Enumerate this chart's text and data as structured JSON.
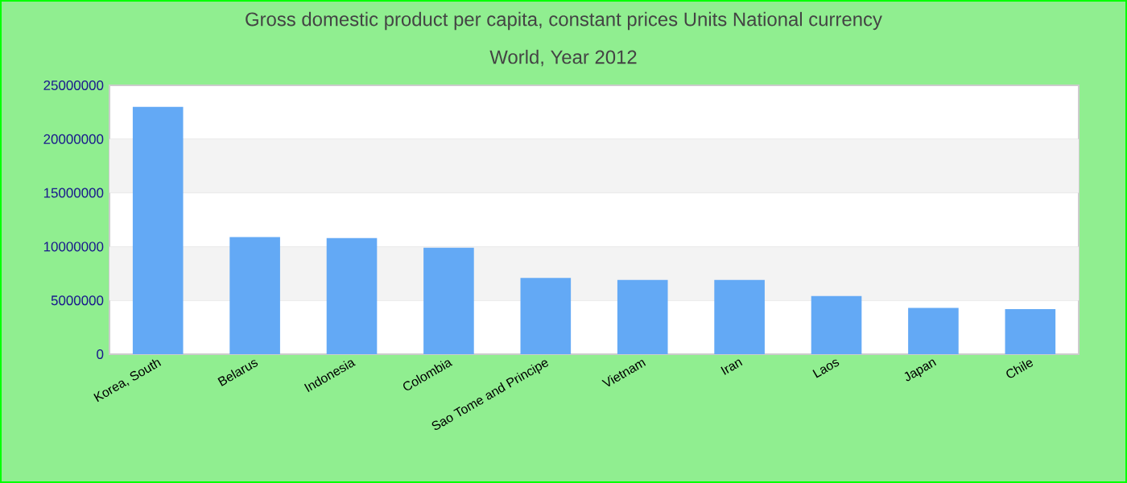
{
  "chart_data": {
    "type": "bar",
    "title": "Gross domestic product per capita, constant prices Units National currency",
    "subtitle": "World, Year 2012",
    "categories": [
      "Korea, South",
      "Belarus",
      "Indonesia",
      "Colombia",
      "Sao Tome and Principe",
      "Vietnam",
      "Iran",
      "Laos",
      "Japan",
      "Chile"
    ],
    "values": [
      23000000,
      10900000,
      10800000,
      9900000,
      7100000,
      6900000,
      6900000,
      5400000,
      4300000,
      4200000
    ],
    "color": "#63a9f5",
    "ylim": [
      0,
      25000000
    ],
    "yticks": [
      0,
      5000000,
      10000000,
      15000000,
      20000000,
      25000000
    ],
    "grid": "y"
  }
}
